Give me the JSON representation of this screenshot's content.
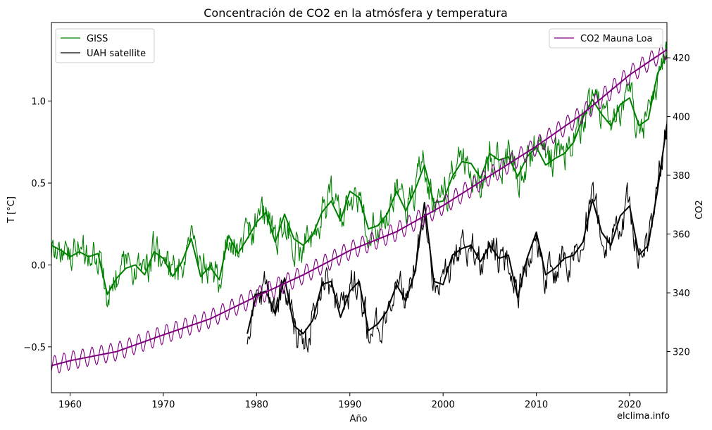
{
  "chart_data": {
    "type": "line",
    "title": "Concentración de CO2 en la atmósfera y temperatura",
    "xlabel": "Año",
    "ylabel_left": "T [°C]",
    "ylabel_right": "CO2",
    "watermark": "elclima.info",
    "xlim": [
      1958,
      2024
    ],
    "ylim_left": [
      -0.78,
      1.48
    ],
    "ylim_right": [
      306,
      432
    ],
    "x_ticks": [
      1960,
      1970,
      1980,
      1990,
      2000,
      2010,
      2020
    ],
    "y_ticks_left": [
      {
        "value": -0.5,
        "label": "−0.5"
      },
      {
        "value": 0.0,
        "label": "0.0"
      },
      {
        "value": 0.5,
        "label": "0.5"
      },
      {
        "value": 1.0,
        "label": "1.0"
      }
    ],
    "y_ticks_right": [
      320,
      340,
      360,
      380,
      400,
      420
    ],
    "legend_left": {
      "position": "top-left",
      "entries": [
        {
          "label": "GISS",
          "color": "#008000"
        },
        {
          "label": "UAH satellite",
          "color": "#000000"
        }
      ]
    },
    "legend_right": {
      "position": "top-right",
      "entries": [
        {
          "label": "CO2 Mauna Loa",
          "color": "#800080"
        }
      ]
    },
    "series": [
      {
        "name": "GISS",
        "axis": "left",
        "color": "#008000",
        "smoothed": true,
        "x": [
          1958,
          1959,
          1960,
          1961,
          1962,
          1963,
          1964,
          1965,
          1966,
          1967,
          1968,
          1969,
          1970,
          1971,
          1972,
          1973,
          1974,
          1975,
          1976,
          1977,
          1978,
          1979,
          1980,
          1981,
          1982,
          1983,
          1984,
          1985,
          1986,
          1987,
          1988,
          1989,
          1990,
          1991,
          1992,
          1993,
          1994,
          1995,
          1996,
          1997,
          1998,
          1999,
          2000,
          2001,
          2002,
          2003,
          2004,
          2005,
          2006,
          2007,
          2008,
          2009,
          2010,
          2011,
          2012,
          2013,
          2014,
          2015,
          2016,
          2017,
          2018,
          2019,
          2020,
          2021,
          2022,
          2023,
          2024
        ],
        "values": [
          0.12,
          0.09,
          0.05,
          0.08,
          0.05,
          0.07,
          -0.18,
          -0.08,
          -0.02,
          0.0,
          -0.06,
          0.08,
          0.04,
          -0.07,
          0.02,
          0.16,
          -0.07,
          -0.01,
          -0.09,
          0.18,
          0.07,
          0.16,
          0.26,
          0.32,
          0.14,
          0.31,
          0.16,
          0.12,
          0.18,
          0.32,
          0.39,
          0.27,
          0.45,
          0.41,
          0.22,
          0.24,
          0.31,
          0.45,
          0.33,
          0.46,
          0.61,
          0.38,
          0.39,
          0.54,
          0.63,
          0.62,
          0.53,
          0.68,
          0.64,
          0.66,
          0.54,
          0.66,
          0.72,
          0.61,
          0.65,
          0.68,
          0.75,
          0.9,
          1.01,
          0.92,
          0.85,
          0.98,
          1.02,
          0.85,
          0.89,
          1.17,
          1.28
        ]
      },
      {
        "name": "UAH satellite",
        "axis": "left",
        "color": "#000000",
        "smoothed": true,
        "x": [
          1979,
          1980,
          1981,
          1982,
          1983,
          1984,
          1985,
          1986,
          1987,
          1988,
          1989,
          1990,
          1991,
          1992,
          1993,
          1994,
          1995,
          1996,
          1997,
          1998,
          1999,
          2000,
          2001,
          2002,
          2003,
          2004,
          2005,
          2006,
          2007,
          2008,
          2009,
          2010,
          2011,
          2012,
          2013,
          2014,
          2015,
          2016,
          2017,
          2018,
          2019,
          2020,
          2021,
          2022,
          2023,
          2024
        ],
        "values": [
          -0.42,
          -0.18,
          -0.16,
          -0.3,
          -0.08,
          -0.37,
          -0.42,
          -0.34,
          -0.12,
          -0.1,
          -0.32,
          -0.16,
          -0.1,
          -0.4,
          -0.36,
          -0.28,
          -0.12,
          -0.22,
          -0.04,
          0.38,
          -0.1,
          -0.12,
          0.06,
          0.1,
          0.12,
          0.02,
          0.12,
          0.04,
          0.06,
          -0.2,
          0.04,
          0.2,
          -0.06,
          -0.02,
          0.04,
          0.06,
          0.14,
          0.4,
          0.2,
          0.12,
          0.3,
          0.36,
          0.06,
          0.12,
          0.46,
          0.86
        ]
      },
      {
        "name": "CO2 Mauna Loa",
        "axis": "right",
        "color": "#800080",
        "smoothed": true,
        "seasonal_amplitude": 3.2,
        "x": [
          1958,
          1960,
          1965,
          1970,
          1975,
          1980,
          1985,
          1990,
          1995,
          2000,
          2005,
          2010,
          2015,
          2020,
          2024
        ],
        "values": [
          315.2,
          316.9,
          320.0,
          325.7,
          331.1,
          338.8,
          346.1,
          354.4,
          360.8,
          369.7,
          379.8,
          389.9,
          401.0,
          414.2,
          422.8
        ]
      }
    ]
  }
}
